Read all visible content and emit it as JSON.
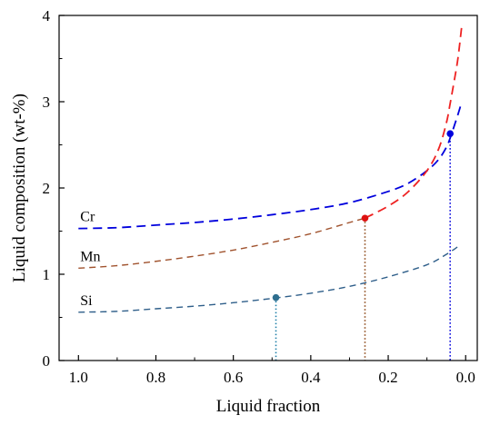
{
  "chart_data": {
    "type": "line",
    "xlabel": "Liquid fraction",
    "ylabel": "Liquid composition (wt-%)",
    "xlim": [
      1.05,
      -0.03
    ],
    "ylim": [
      0,
      4
    ],
    "x_reversed": true,
    "grid": false,
    "x_ticks": [
      "1.0",
      "0.8",
      "0.6",
      "0.4",
      "0.2",
      "0.0"
    ],
    "y_ticks": [
      "0",
      "1",
      "2",
      "3",
      "4"
    ],
    "series": [
      {
        "name": "Cr",
        "color": "#0000dd",
        "line_style": "dashed",
        "x": [
          1.0,
          0.9,
          0.8,
          0.7,
          0.6,
          0.5,
          0.4,
          0.3,
          0.2,
          0.15,
          0.1,
          0.07,
          0.05,
          0.04,
          0.02,
          0.01
        ],
        "y": [
          1.53,
          1.54,
          1.57,
          1.6,
          1.64,
          1.69,
          1.75,
          1.83,
          1.96,
          2.05,
          2.2,
          2.33,
          2.47,
          2.58,
          2.85,
          3.0
        ],
        "marker": {
          "x": 0.04,
          "y": 2.63
        }
      },
      {
        "name": "Mn",
        "color": "#a0522d",
        "line_style": "dashed",
        "x": [
          1.0,
          0.9,
          0.8,
          0.7,
          0.6,
          0.5,
          0.4,
          0.3,
          0.26
        ],
        "y": [
          1.07,
          1.1,
          1.15,
          1.21,
          1.28,
          1.37,
          1.47,
          1.6,
          1.65
        ],
        "marker": {
          "x": 0.26,
          "y": 1.65
        }
      },
      {
        "name": "",
        "color": "#ee2222",
        "line_style": "dashed",
        "x": [
          0.26,
          0.2,
          0.15,
          0.1,
          0.07,
          0.05,
          0.04,
          0.03,
          0.02,
          0.01
        ],
        "y": [
          1.65,
          1.79,
          1.95,
          2.2,
          2.45,
          2.75,
          2.98,
          3.23,
          3.5,
          3.88
        ]
      },
      {
        "name": "Si",
        "color": "#2f5f8a",
        "line_style": "dashed",
        "x": [
          1.0,
          0.9,
          0.8,
          0.7,
          0.6,
          0.5,
          0.4,
          0.3,
          0.2,
          0.1,
          0.05,
          0.02
        ],
        "y": [
          0.56,
          0.57,
          0.6,
          0.63,
          0.67,
          0.72,
          0.78,
          0.86,
          0.97,
          1.11,
          1.23,
          1.32
        ],
        "marker": {
          "x": 0.49,
          "y": 0.73
        }
      }
    ],
    "drop_lines": [
      {
        "x": 0.49,
        "y": 0.73,
        "color": "#1f7fa8"
      },
      {
        "x": 0.26,
        "y": 1.65,
        "color": "#8b4513"
      },
      {
        "x": 0.04,
        "y": 2.63,
        "color": "#0000dd"
      }
    ],
    "marker_colors": [
      "#2f6f8f",
      "#dd1111",
      "#0000dd"
    ]
  }
}
